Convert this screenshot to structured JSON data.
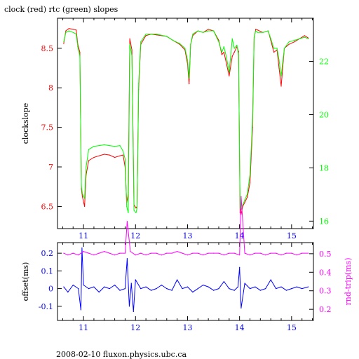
{
  "chart_data": [
    {
      "type": "line",
      "title": "clock (red) rtc (green) slopes",
      "ylabel": "clockslope",
      "y2label": "",
      "xlim": [
        10.5,
        15.42
      ],
      "ylim": [
        6.22,
        8.88
      ],
      "y2lim": [
        15.72,
        23.62
      ],
      "x_ticks": [
        "11",
        "12",
        "13",
        "14",
        "15"
      ],
      "y_ticks": [
        "6.5",
        "7",
        "7.5",
        "8",
        "8.5"
      ],
      "y2_ticks": [
        "16",
        "18",
        "20",
        "22"
      ],
      "grid": false,
      "colors": {
        "axis": "#000000",
        "x_ticks": "#0000ff",
        "y_ticks": "#ff0000",
        "y2_ticks": "#00ff00"
      },
      "series": [
        {
          "name": "clock",
          "color": "#ff0000",
          "x": [
            10.62,
            10.66,
            10.72,
            10.8,
            10.86,
            10.89,
            10.93,
            10.96,
            10.98,
            11.02,
            11.05,
            11.1,
            11.2,
            11.3,
            11.4,
            11.5,
            11.6,
            11.7,
            11.76,
            11.8,
            11.83,
            11.86,
            11.89,
            11.93,
            11.97,
            12.01,
            12.03,
            12.06,
            12.1,
            12.2,
            12.3,
            12.4,
            12.6,
            12.72,
            12.85,
            12.95,
            13.0,
            13.03,
            13.06,
            13.1,
            13.2,
            13.3,
            13.4,
            13.5,
            13.6,
            13.66,
            13.7,
            13.75,
            13.8,
            13.86,
            13.9,
            13.95,
            13.98,
            14.01,
            14.03,
            14.06,
            14.1,
            14.15,
            14.2,
            14.25,
            14.28,
            14.31,
            14.35,
            14.45,
            14.55,
            14.6,
            14.66,
            14.72,
            14.76,
            14.8,
            14.86,
            14.95,
            15.05,
            15.15,
            15.25,
            15.32
          ],
          "y": [
            8.56,
            8.72,
            8.75,
            8.74,
            8.73,
            8.55,
            8.45,
            6.72,
            6.62,
            6.5,
            6.9,
            7.08,
            7.12,
            7.14,
            7.16,
            7.15,
            7.12,
            7.14,
            7.15,
            7.0,
            6.55,
            6.65,
            8.62,
            8.48,
            6.52,
            6.48,
            6.5,
            7.98,
            8.55,
            8.66,
            8.68,
            8.67,
            8.65,
            8.6,
            8.55,
            8.48,
            8.3,
            8.05,
            8.55,
            8.66,
            8.72,
            8.7,
            8.74,
            8.72,
            8.6,
            8.42,
            8.45,
            8.3,
            8.15,
            8.4,
            8.45,
            8.52,
            8.46,
            6.42,
            6.4,
            6.5,
            6.55,
            6.62,
            6.8,
            7.5,
            8.62,
            8.74,
            8.73,
            8.7,
            8.72,
            8.6,
            8.45,
            8.48,
            8.25,
            8.02,
            8.5,
            8.55,
            8.58,
            8.62,
            8.66,
            8.63
          ]
        },
        {
          "name": "rtc",
          "color": "#00ff00",
          "x": [
            10.62,
            10.66,
            10.72,
            10.8,
            10.86,
            10.89,
            10.93,
            10.96,
            10.98,
            11.02,
            11.05,
            11.1,
            11.2,
            11.3,
            11.4,
            11.5,
            11.6,
            11.7,
            11.76,
            11.8,
            11.83,
            11.86,
            11.89,
            11.93,
            11.97,
            12.01,
            12.03,
            12.06,
            12.1,
            12.2,
            12.3,
            12.4,
            12.6,
            12.72,
            12.85,
            12.95,
            13.0,
            13.03,
            13.06,
            13.1,
            13.2,
            13.3,
            13.4,
            13.5,
            13.6,
            13.66,
            13.7,
            13.75,
            13.8,
            13.86,
            13.9,
            13.95,
            13.98,
            14.01,
            14.03,
            14.06,
            14.1,
            14.15,
            14.2,
            14.25,
            14.28,
            14.31,
            14.35,
            14.45,
            14.55,
            14.6,
            14.66,
            14.72,
            14.76,
            14.8,
            14.86,
            14.95,
            15.05,
            15.15,
            15.25,
            15.32
          ],
          "y": [
            8.58,
            8.7,
            8.72,
            8.7,
            8.68,
            8.52,
            8.4,
            6.75,
            6.66,
            6.6,
            7.0,
            7.22,
            7.26,
            7.27,
            7.28,
            7.27,
            7.26,
            7.27,
            7.2,
            7.1,
            6.5,
            6.42,
            8.55,
            8.4,
            6.45,
            6.42,
            6.48,
            8.05,
            8.58,
            8.68,
            8.68,
            8.68,
            8.65,
            8.6,
            8.56,
            8.5,
            8.35,
            8.12,
            8.55,
            8.68,
            8.72,
            8.7,
            8.72,
            8.72,
            8.58,
            8.45,
            8.52,
            8.38,
            8.2,
            8.62,
            8.5,
            8.54,
            8.42,
            6.48,
            6.46,
            6.52,
            6.58,
            6.66,
            6.9,
            7.6,
            8.64,
            8.72,
            8.7,
            8.7,
            8.72,
            8.62,
            8.5,
            8.5,
            8.35,
            8.15,
            8.5,
            8.58,
            8.6,
            8.62,
            8.64,
            8.62
          ]
        }
      ]
    },
    {
      "type": "line",
      "ylabel": "offset(ms)",
      "y2label": "rnd-trip(ms)",
      "xlim": [
        10.5,
        15.42
      ],
      "ylim": [
        -0.18,
        0.26
      ],
      "y2lim": [
        0.14,
        0.56
      ],
      "x_ticks": [
        "11",
        "12",
        "13",
        "14",
        "15"
      ],
      "y_ticks": [
        "-0.1",
        "0",
        "0.1",
        "0.2"
      ],
      "y2_ticks": [
        "0.2",
        "0.3",
        "0.4",
        "0.5"
      ],
      "grid": false,
      "colors": {
        "axis": "#000000",
        "x_ticks": "#0000ff",
        "y_ticks": "#0000ff",
        "y2_ticks": "#ff00ff"
      },
      "series": [
        {
          "name": "offset",
          "color": "#0000ff",
          "x": [
            10.62,
            10.7,
            10.8,
            10.9,
            10.95,
            10.97,
            11.0,
            11.1,
            11.2,
            11.3,
            11.4,
            11.5,
            11.6,
            11.7,
            11.8,
            11.84,
            11.88,
            11.92,
            11.96,
            12.0,
            12.1,
            12.2,
            12.3,
            12.4,
            12.5,
            12.6,
            12.7,
            12.8,
            12.9,
            13.0,
            13.1,
            13.2,
            13.3,
            13.4,
            13.5,
            13.6,
            13.7,
            13.8,
            13.9,
            13.97,
            14.0,
            14.03,
            14.1,
            14.2,
            14.3,
            14.4,
            14.5,
            14.6,
            14.7,
            14.8,
            14.9,
            15.0,
            15.1,
            15.2,
            15.32
          ],
          "y": [
            0.01,
            -0.02,
            0.02,
            0.0,
            -0.12,
            0.23,
            0.02,
            0.0,
            0.01,
            -0.02,
            0.01,
            0.0,
            0.02,
            -0.01,
            0.0,
            0.17,
            -0.1,
            0.03,
            -0.13,
            0.05,
            0.0,
            0.01,
            -0.01,
            0.0,
            0.02,
            0.0,
            -0.01,
            0.05,
            0.0,
            0.01,
            -0.02,
            0.0,
            0.02,
            0.01,
            -0.01,
            0.0,
            0.04,
            0.0,
            -0.01,
            0.01,
            0.12,
            -0.11,
            0.03,
            0.0,
            0.01,
            -0.01,
            0.0,
            0.05,
            0.0,
            0.01,
            -0.01,
            0.0,
            0.01,
            0.0,
            0.01
          ]
        },
        {
          "name": "rnd-trip",
          "color": "#ff00ff",
          "x": [
            10.62,
            10.7,
            10.8,
            10.9,
            11.0,
            11.1,
            11.2,
            11.3,
            11.4,
            11.5,
            11.6,
            11.7,
            11.8,
            11.84,
            11.9,
            12.0,
            12.1,
            12.2,
            12.3,
            12.4,
            12.5,
            12.6,
            12.7,
            12.8,
            12.9,
            13.0,
            13.1,
            13.2,
            13.3,
            13.4,
            13.5,
            13.6,
            13.7,
            13.8,
            13.9,
            14.0,
            14.03,
            14.1,
            14.2,
            14.3,
            14.4,
            14.5,
            14.6,
            14.7,
            14.8,
            14.9,
            15.0,
            15.1,
            15.2,
            15.32
          ],
          "y": [
            0.2,
            0.19,
            0.2,
            0.19,
            0.21,
            0.2,
            0.19,
            0.2,
            0.21,
            0.2,
            0.19,
            0.2,
            0.2,
            0.38,
            0.21,
            0.19,
            0.2,
            0.19,
            0.2,
            0.2,
            0.19,
            0.2,
            0.2,
            0.21,
            0.2,
            0.19,
            0.2,
            0.2,
            0.19,
            0.2,
            0.2,
            0.2,
            0.19,
            0.2,
            0.2,
            0.19,
            0.52,
            0.2,
            0.19,
            0.2,
            0.2,
            0.19,
            0.2,
            0.2,
            0.19,
            0.2,
            0.2,
            0.19,
            0.2,
            0.2
          ]
        }
      ]
    }
  ],
  "footer": "2008-02-10 fluxon.physics.ubc.ca"
}
